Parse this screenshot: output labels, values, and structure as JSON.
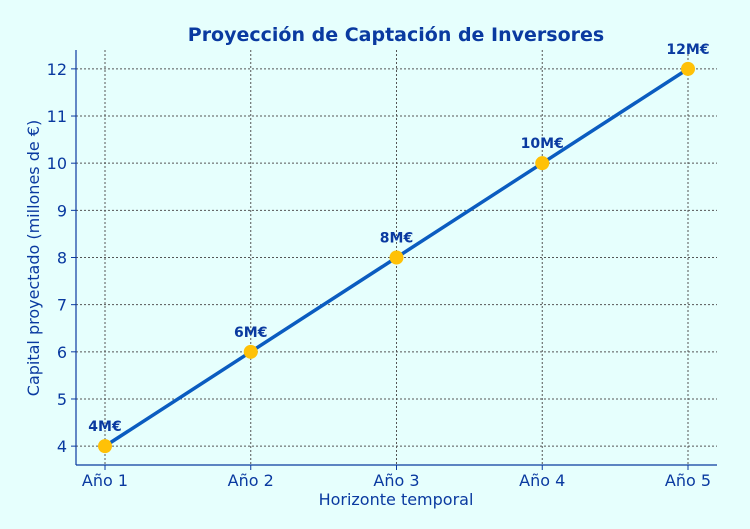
{
  "chart_data": {
    "type": "line",
    "title": "Proyección de Captación de Inversores",
    "xlabel": "Horizonte temporal",
    "ylabel": "Capital proyectado (millones de €)",
    "categories": [
      "Año 1",
      "Año 2",
      "Año 3",
      "Año 4",
      "Año 5"
    ],
    "series": [
      {
        "values": [
          4,
          6,
          8,
          10,
          12
        ],
        "labels": [
          "4M€",
          "6M€",
          "8M€",
          "10M€",
          "12M€"
        ]
      }
    ],
    "yticks": [
      4,
      5,
      6,
      7,
      8,
      9,
      10,
      11,
      12
    ],
    "ylim": [
      3.6,
      12.4
    ],
    "grid": true,
    "colors": {
      "line": "#0b5cc0",
      "marker": "#ffc107",
      "text": "#0a3aa0",
      "background": "#e6fffd",
      "grid": "#555555"
    }
  }
}
